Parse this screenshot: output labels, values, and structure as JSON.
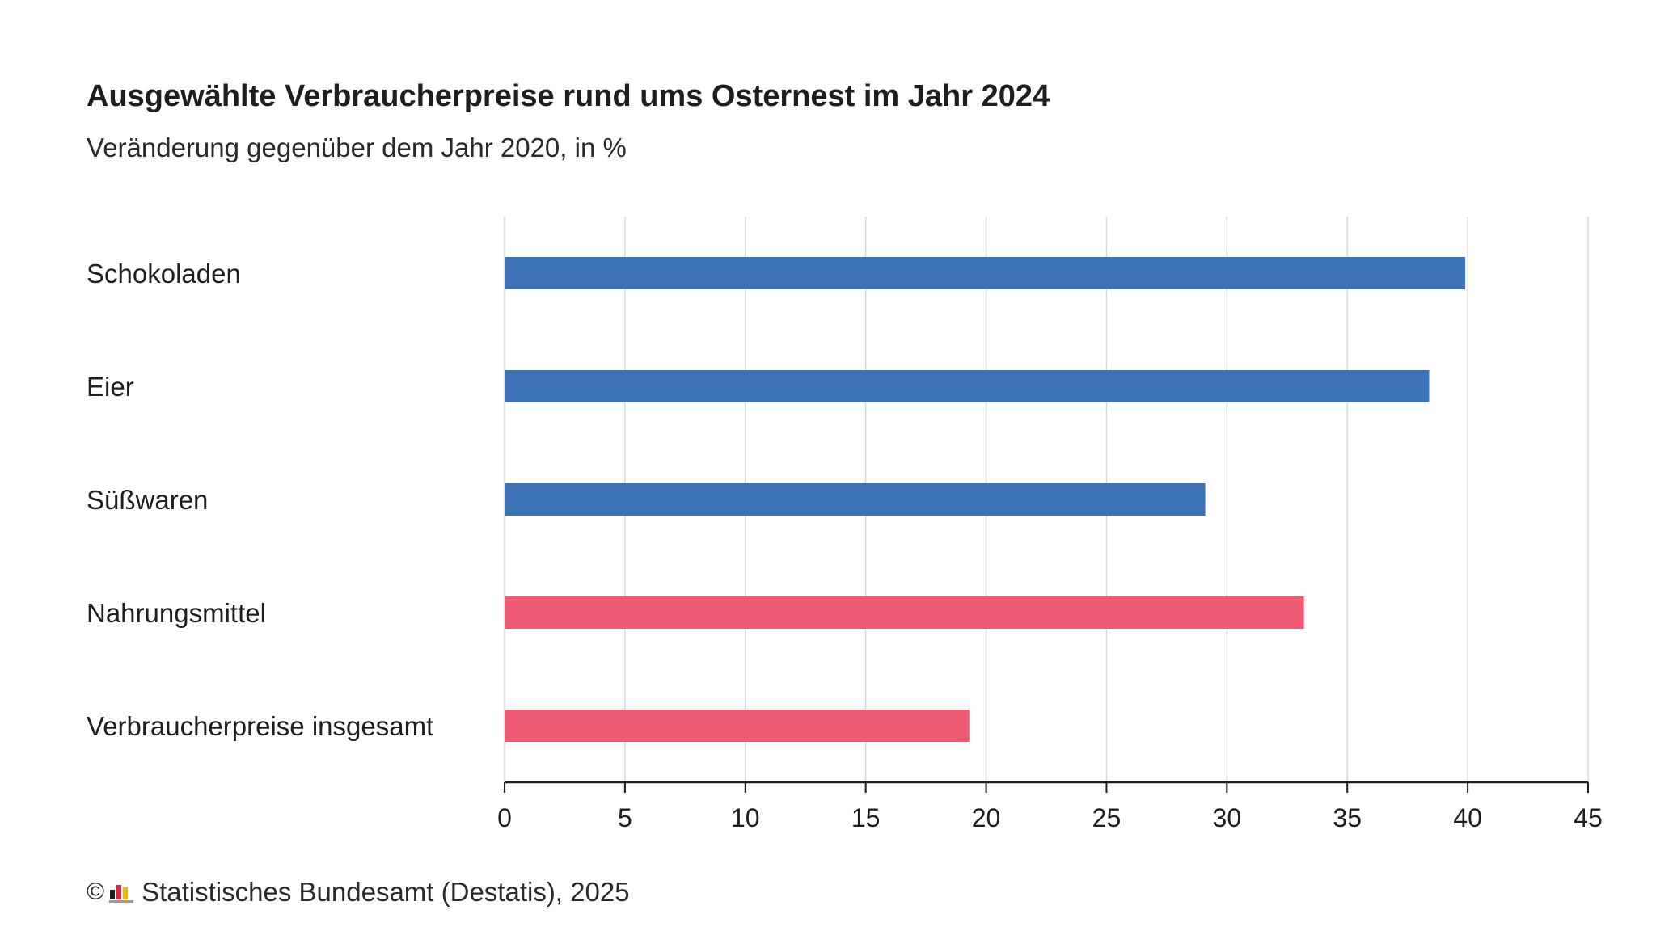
{
  "chart_data": {
    "type": "bar",
    "orientation": "horizontal",
    "title": "Ausgewählte Verbraucherpreise rund ums Osternest im Jahr 2024",
    "subtitle": "Veränderung gegenüber dem Jahr 2020, in %",
    "categories": [
      "Schokoladen",
      "Eier",
      "Süßwaren",
      "Nahrungsmittel",
      "Verbraucherpreise insgesamt"
    ],
    "values": [
      39.9,
      38.4,
      29.1,
      33.2,
      19.3
    ],
    "bar_colors": [
      "#3d72b7",
      "#3d72b7",
      "#3d72b7",
      "#ee5b72",
      "#ee5b72"
    ],
    "xlim": [
      0,
      45
    ],
    "xticks": [
      "0",
      "5",
      "10",
      "15",
      "20",
      "25",
      "30",
      "35",
      "40",
      "45"
    ],
    "grid": true,
    "xlabel": "",
    "ylabel": ""
  },
  "footer": {
    "copyright_symbol": "©",
    "logo_icon": "destatis-logo-icon",
    "source": "Statistisches Bundesamt (Destatis), 2025"
  }
}
